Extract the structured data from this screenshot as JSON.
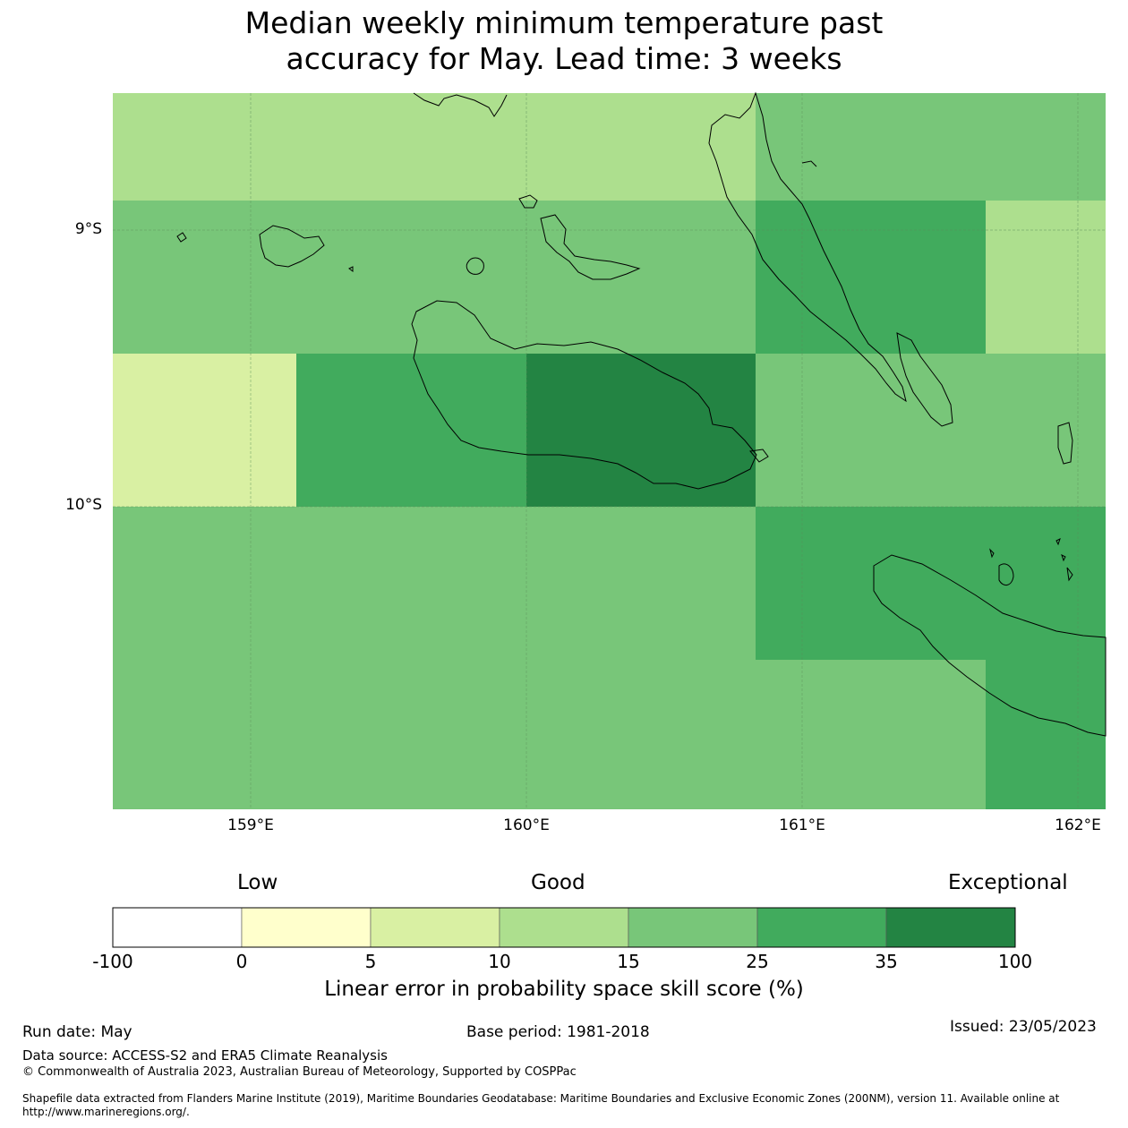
{
  "title_line1": "Median weekly minimum temperature past",
  "title_line2": "accuracy for May. Lead time: 3 weeks",
  "map": {
    "lat_labels": [
      "9°S",
      "10°S"
    ],
    "lon_labels": [
      "159°E",
      "160°E",
      "161°E",
      "162°E"
    ],
    "cells": [
      {
        "lat_range": "8.5°S–8.9°S",
        "lon_range": "158.5°E–160.8°E",
        "category": "10-15",
        "color": "#addf8e"
      },
      {
        "lat_range": "8.5°S–8.9°S",
        "lon_range": "160.8°E–162.1°E",
        "category": "15-25",
        "color": "#78c679"
      },
      {
        "lat_range": "8.9°S–9.5°S",
        "lon_range": "158.5°E–160.8°E",
        "category": "15-25",
        "color": "#78c679"
      },
      {
        "lat_range": "8.9°S–9.5°S",
        "lon_range": "160.8°E–161.7°E",
        "category": "25-35",
        "color": "#41ab5d"
      },
      {
        "lat_range": "8.9°S–9.5°S",
        "lon_range": "161.7°E–162.1°E",
        "category": "10-15",
        "color": "#addf8e"
      },
      {
        "lat_range": "9.5°S–10°S",
        "lon_range": "158.5°E–159.2°E",
        "category": "5-10",
        "color": "#d9f0a3"
      },
      {
        "lat_range": "9.5°S–10°S",
        "lon_range": "159.2°E–160°E",
        "category": "25-35",
        "color": "#41ab5d"
      },
      {
        "lat_range": "9.5°S–10°S",
        "lon_range": "160°E–160.8°E",
        "category": "35-100",
        "color": "#238443"
      },
      {
        "lat_range": "9.5°S–10°S",
        "lon_range": "160.8°E–162.1°E",
        "category": "15-25",
        "color": "#78c679"
      },
      {
        "lat_range": "10°S–11.1°S",
        "lon_range": "158.5°E–160.8°E",
        "category": "15-25",
        "color": "#78c679"
      },
      {
        "lat_range": "10°S–10.6°S",
        "lon_range": "160.8°E–162.1°E",
        "category": "25-35",
        "color": "#41ab5d"
      },
      {
        "lat_range": "10.6°S–11.1°S",
        "lon_range": "160.8°E–161.7°E",
        "category": "15-25",
        "color": "#78c679"
      },
      {
        "lat_range": "10.6°S–11.1°S",
        "lon_range": "161.7°E–162.1°E",
        "category": "25-35",
        "color": "#41ab5d"
      }
    ]
  },
  "colorbar": {
    "words": {
      "low": "Low",
      "good": "Good",
      "exceptional": "Exceptional"
    },
    "ticks": [
      "-100",
      "0",
      "5",
      "10",
      "15",
      "25",
      "35",
      "100"
    ],
    "colors": [
      "#ffffff",
      "#ffffcc",
      "#d9f0a3",
      "#addf8e",
      "#78c679",
      "#41ab5d",
      "#238443"
    ],
    "label": "Linear error in probability space skill score (%)"
  },
  "footer": {
    "run_date": "Run date: May",
    "base_period": "Base period: 1981-2018",
    "issued": "Issued: 23/05/2023",
    "data_source": "Data source: ACCESS-S2 and ERA5 Climate Reanalysis",
    "copyright": "© Commonwealth of Australia 2023, Australian Bureau of Meteorology, Supported by COSPPac",
    "shapefile": "Shapefile data extracted from Flanders Marine Institute (2019), Maritime Boundaries Geodatabase: Maritime Boundaries and Exclusive Economic Zones (200NM), version 11. Available online at http://www.marineregions.org/."
  }
}
